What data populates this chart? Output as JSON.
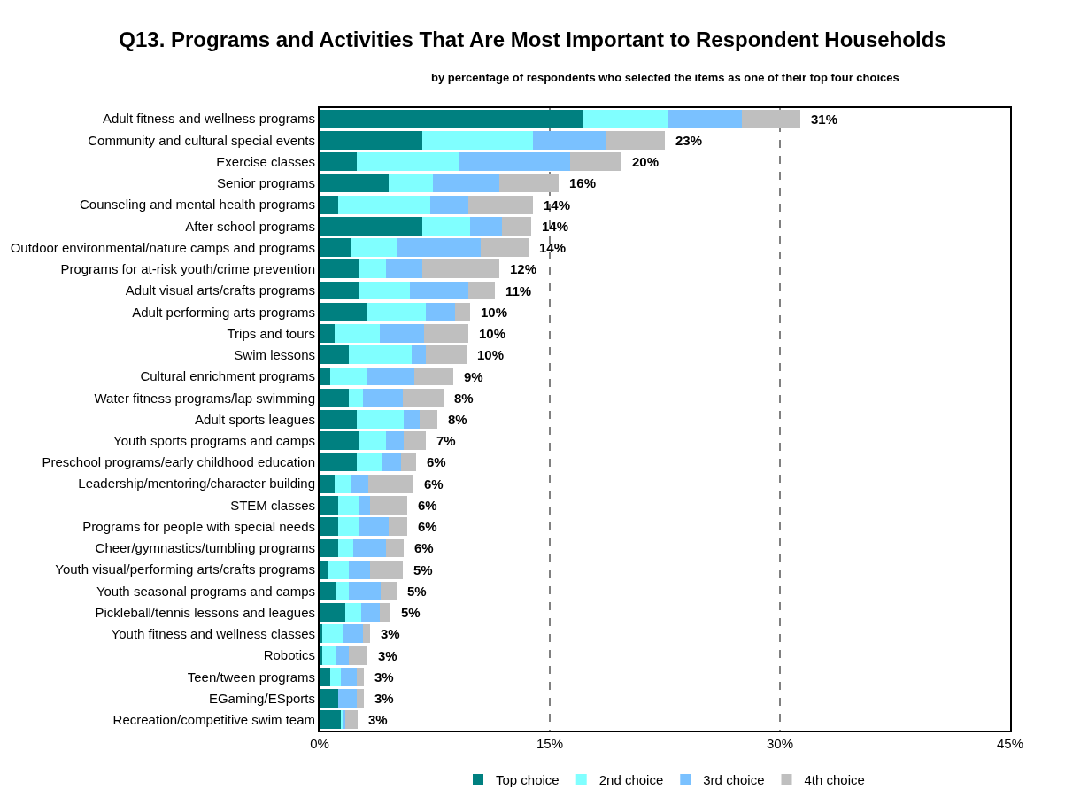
{
  "chart_data": {
    "type": "bar",
    "orientation": "horizontal",
    "stacked": true,
    "title": "Q13. Programs and Activities That Are Most Important to Respondent Households",
    "subtitle": "by percentage of respondents who selected the items as one of their top four choices",
    "categories": [
      "Adult fitness and wellness programs",
      "Community and cultural special events",
      "Exercise classes",
      "Senior programs",
      "Counseling and mental health programs",
      "After school programs",
      "Outdoor environmental/nature camps and programs",
      "Programs for at-risk youth/crime prevention",
      "Adult visual arts/crafts programs",
      "Adult performing arts programs",
      "Trips and tours",
      "Swim lessons",
      "Cultural enrichment programs",
      "Water fitness programs/lap swimming",
      "Adult sports leagues",
      "Youth sports programs and camps",
      "Preschool programs/early childhood education",
      "Leadership/mentoring/character building",
      "STEM classes",
      "Programs for people with special needs",
      "Cheer/gymnastics/tumbling programs",
      "Youth visual/performing arts/crafts programs",
      "Youth seasonal programs and camps",
      "Pickleball/tennis lessons and leagues",
      "Youth fitness and wellness classes",
      "Robotics",
      "Teen/tween programs",
      "EGaming/ESports",
      "Recreation/competitive swim team"
    ],
    "series": [
      {
        "name": "Top choice",
        "color": "#008080",
        "values": [
          17.2,
          6.7,
          2.4,
          4.5,
          1.2,
          6.7,
          2.1,
          2.6,
          2.6,
          3.1,
          1.0,
          1.9,
          0.7,
          1.9,
          2.4,
          2.6,
          2.4,
          1.0,
          1.2,
          1.2,
          1.2,
          0.5,
          1.1,
          1.7,
          0.2,
          0.2,
          0.7,
          1.2,
          1.4
        ]
      },
      {
        "name": "2nd choice",
        "color": "#80ffff",
        "values": [
          5.5,
          7.2,
          6.7,
          2.9,
          6.0,
          3.1,
          2.9,
          1.7,
          3.3,
          3.8,
          2.9,
          4.1,
          2.4,
          0.9,
          3.1,
          1.7,
          1.7,
          1.0,
          1.4,
          1.4,
          1.0,
          1.4,
          0.8,
          1.0,
          1.3,
          0.9,
          0.7,
          0,
          0.2
        ]
      },
      {
        "name": "3rd choice",
        "color": "#7ac1ff",
        "values": [
          4.8,
          4.8,
          7.2,
          4.3,
          2.5,
          2.1,
          5.5,
          2.4,
          3.8,
          1.9,
          2.9,
          0.9,
          3.1,
          2.6,
          1.0,
          1.2,
          1.2,
          1.2,
          0.7,
          1.9,
          2.1,
          1.4,
          2.1,
          1.2,
          1.3,
          0.8,
          1.0,
          1.2,
          0.1
        ]
      },
      {
        "name": "4th choice",
        "color": "#bfbfbf",
        "values": [
          3.8,
          3.8,
          3.4,
          3.9,
          4.2,
          1.9,
          3.1,
          5.0,
          1.7,
          1.0,
          2.9,
          2.7,
          2.5,
          2.7,
          1.2,
          1.4,
          1.0,
          2.9,
          2.4,
          1.2,
          1.2,
          2.1,
          1.0,
          0.7,
          0.5,
          1.2,
          0.5,
          0.5,
          0.8
        ]
      }
    ],
    "totals": [
      "31%",
      "23%",
      "20%",
      "16%",
      "14%",
      "14%",
      "14%",
      "12%",
      "11%",
      "10%",
      "10%",
      "10%",
      "9%",
      "8%",
      "8%",
      "7%",
      "6%",
      "6%",
      "6%",
      "6%",
      "6%",
      "5%",
      "5%",
      "5%",
      "3%",
      "3%",
      "3%",
      "3%",
      "3%"
    ],
    "xlim": [
      0,
      45
    ],
    "xticks": [
      {
        "value": 0,
        "label": "0%"
      },
      {
        "value": 15,
        "label": "15%"
      },
      {
        "value": 30,
        "label": "30%"
      },
      {
        "value": 45,
        "label": "45%"
      }
    ],
    "grid": "x",
    "line_style": "dashed",
    "legend": "bottom"
  }
}
